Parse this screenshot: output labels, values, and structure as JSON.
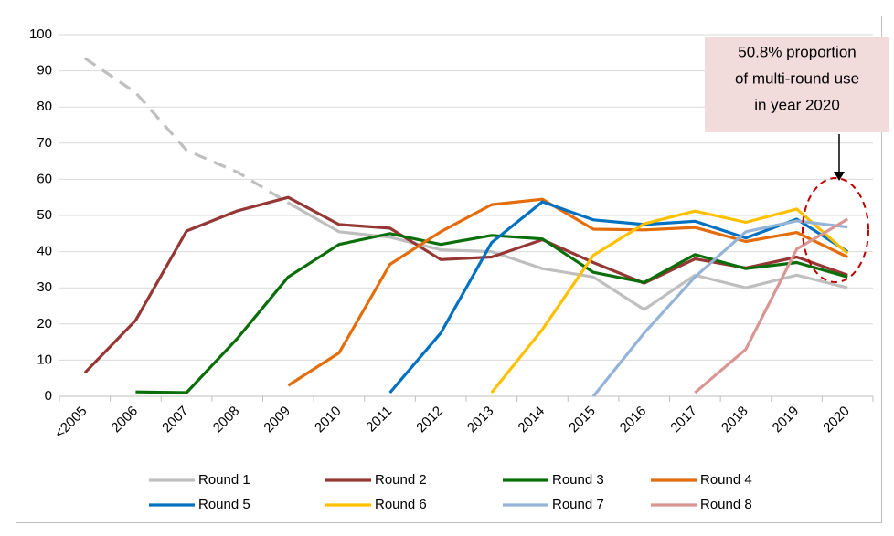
{
  "chart_data": {
    "type": "line",
    "categories": [
      "<2005",
      "2006",
      "2007",
      "2008",
      "2009",
      "2010",
      "2011",
      "2012",
      "2013",
      "2014",
      "2015",
      "2016",
      "2017",
      "2018",
      "2019",
      "2020"
    ],
    "ylim": [
      0,
      100
    ],
    "yticks": [
      0,
      10,
      20,
      30,
      40,
      50,
      60,
      70,
      80,
      90,
      100
    ],
    "grid": true,
    "legend": "bottom",
    "annotation": [
      "50.8% proportion",
      "of multi-round use",
      "in year 2020"
    ],
    "series": [
      {
        "name": "Round 1",
        "color": "#bfbfbf",
        "dashed_through": "2009",
        "values": [
          93.5,
          84,
          68,
          62,
          53.5,
          45.5,
          44,
          40.5,
          40,
          35.3,
          33,
          24,
          33.5,
          30,
          33.5,
          30
        ]
      },
      {
        "name": "Round 2",
        "color": "#953735",
        "values": [
          6.5,
          21,
          45.7,
          51.3,
          55,
          47.5,
          46.5,
          37.8,
          38.5,
          43.3,
          37,
          31.3,
          38,
          35.5,
          38.5,
          33.5
        ]
      },
      {
        "name": "Round 3",
        "color": "#0a6e0a",
        "values": [
          null,
          1.2,
          1,
          16,
          33,
          42,
          45,
          42,
          44.5,
          43.5,
          34.3,
          31.5,
          39.2,
          35.3,
          37,
          33
        ]
      },
      {
        "name": "Round 4",
        "color": "#e46c0a",
        "values": [
          null,
          null,
          null,
          null,
          3,
          12,
          36.5,
          45.5,
          53,
          54.5,
          46.2,
          46,
          46.7,
          42.8,
          45.3,
          38.5
        ]
      },
      {
        "name": "Round 5",
        "color": "#0070c0",
        "values": [
          null,
          null,
          null,
          null,
          null,
          null,
          1,
          17.5,
          42.5,
          53.8,
          48.8,
          47.5,
          48.4,
          43.8,
          49,
          40
        ]
      },
      {
        "name": "Round 6",
        "color": "#ffc000",
        "values": [
          null,
          null,
          null,
          null,
          null,
          null,
          null,
          null,
          1,
          18.5,
          39,
          47.7,
          51.2,
          48.1,
          51.8,
          39.5
        ]
      },
      {
        "name": "Round 7",
        "color": "#95b3d7",
        "values": [
          null,
          null,
          null,
          null,
          null,
          null,
          null,
          null,
          null,
          null,
          0,
          17.5,
          33,
          45.5,
          48.5,
          46.8
        ]
      },
      {
        "name": "Round 8",
        "color": "#d99694",
        "values": [
          null,
          null,
          null,
          null,
          null,
          null,
          null,
          null,
          null,
          null,
          null,
          null,
          1,
          13,
          40.7,
          49
        ]
      }
    ]
  }
}
